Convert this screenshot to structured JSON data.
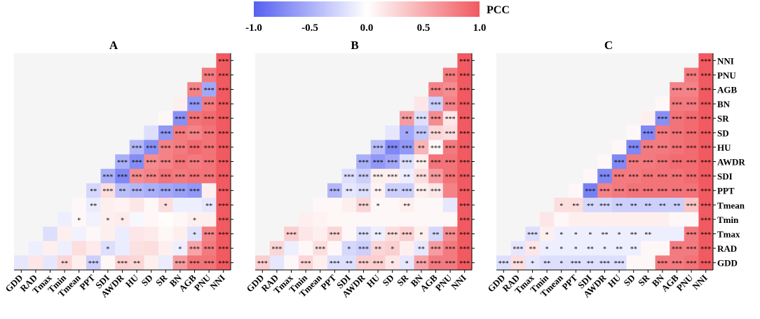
{
  "colorbar": {
    "title": "PCC",
    "tick_labels": [
      "-1.0",
      "-0.5",
      "0.0",
      "0.5",
      "1.0"
    ],
    "tick_values": [
      -1.0,
      -0.5,
      0.0,
      0.5,
      1.0
    ],
    "colors": {
      "negative": "#5560f0",
      "neutral": "#ffffff",
      "positive": "#f05a60"
    }
  },
  "chart_data": [
    {
      "type": "heatmap",
      "title": "A",
      "triangle": "lower-right",
      "x_labels": [
        "GDD",
        "RAD",
        "Tmax",
        "Tmin",
        "Tmean",
        "PPT",
        "SDI",
        "AWDR",
        "HU",
        "SD",
        "SR",
        "BN",
        "AGB",
        "PNU",
        "NNI"
      ],
      "y_labels": [
        "NNI",
        "PNU",
        "AGB",
        "BN",
        "SR",
        "SD",
        "HU",
        "AWDR",
        "SDI",
        "PPT",
        "Tmean",
        "Tmin",
        "Tmax",
        "RAD",
        "GDD"
      ],
      "show_y_labels": false,
      "values": [
        [
          1.0
        ],
        [
          0.8,
          1.0
        ],
        [
          0.75,
          -0.55,
          1.0
        ],
        [
          0.1,
          -0.65,
          0.8,
          1.0
        ],
        [
          0.05,
          -0.7,
          0.85,
          0.9,
          1.0
        ],
        [
          -0.2,
          -0.65,
          0.8,
          0.75,
          0.85,
          1.0
        ],
        [
          -0.45,
          -0.7,
          0.75,
          0.8,
          0.9,
          0.85,
          1.0
        ],
        [
          -0.5,
          -0.72,
          0.7,
          0.75,
          0.85,
          0.8,
          0.85,
          1.0
        ],
        [
          -0.5,
          -0.75,
          0.7,
          0.75,
          0.85,
          0.8,
          0.85,
          0.85,
          1.0
        ],
        [
          -0.25,
          0.2,
          -0.4,
          -0.45,
          -0.5,
          -0.55,
          -0.6,
          -0.65,
          0.1,
          1.0
        ],
        [
          0.05,
          -0.12,
          0.1,
          0.08,
          0.15,
          0.05,
          0.2,
          -0.1,
          -0.1,
          -0.15,
          1.0
        ],
        [
          -0.1,
          0.05,
          -0.08,
          0.1,
          0.12,
          -0.05,
          0.05,
          0.02,
          0.05,
          0.1,
          0.1,
          1.0
        ],
        [
          -0.2,
          0.1,
          -0.08,
          0.05,
          0.1,
          -0.12,
          0.15,
          0.12,
          0.05,
          0.1,
          -0.18,
          0.75,
          1.0
        ],
        [
          -0.1,
          0.1,
          -0.1,
          0.2,
          0.12,
          -0.2,
          -0.12,
          0.18,
          0.2,
          0.1,
          -0.1,
          0.55,
          0.8,
          1.0
        ],
        [
          -0.15,
          0.15,
          -0.15,
          0.25,
          0.1,
          -0.3,
          0.05,
          0.28,
          0.25,
          0.1,
          -0.12,
          0.6,
          0.85,
          0.85,
          1.0
        ]
      ],
      "stars": [
        [
          "***"
        ],
        [
          "***",
          "***"
        ],
        [
          "***",
          "***",
          "***"
        ],
        [
          "",
          "***",
          "***",
          "***"
        ],
        [
          "",
          "***",
          "***",
          "***",
          "***"
        ],
        [
          "",
          "***",
          "***",
          "***",
          "***",
          "***"
        ],
        [
          "***",
          "***",
          "***",
          "***",
          "***",
          "***",
          "***"
        ],
        [
          "***",
          "***",
          "***",
          "***",
          "***",
          "***",
          "***",
          "***"
        ],
        [
          "***",
          "***",
          "***",
          "***",
          "***",
          "***",
          "***",
          "***",
          "***"
        ],
        [
          "**",
          "***",
          "**",
          "***",
          "**",
          "***",
          "***",
          "***",
          "",
          "***"
        ],
        [
          "",
          "**",
          "",
          "",
          "",
          "",
          "*",
          "",
          "",
          "**",
          "***"
        ],
        [
          "",
          "*",
          "",
          "*",
          "*",
          "",
          "",
          "",
          "",
          "*",
          "",
          "***"
        ],
        [
          "",
          "",
          "",
          "",
          "",
          "",
          "",
          "",
          "",
          "",
          "*",
          "***",
          "***"
        ],
        [
          "",
          "",
          "",
          "",
          "",
          "*",
          "",
          "",
          "",
          "",
          "*",
          "***",
          "***",
          "***"
        ],
        [
          "",
          "",
          "",
          "**",
          "",
          "***",
          "",
          "***",
          "**",
          "",
          "",
          "***",
          "***",
          "***",
          "***"
        ]
      ]
    },
    {
      "type": "heatmap",
      "title": "B",
      "triangle": "lower-right",
      "x_labels": [
        "GDD",
        "RAD",
        "Tmax",
        "Tmin",
        "Tmean",
        "PPT",
        "SDI",
        "AWDR",
        "HU",
        "SD",
        "SR",
        "BN",
        "AGB",
        "PNU",
        "NNI"
      ],
      "y_labels": [
        "NNI",
        "PNU",
        "AGB",
        "BN",
        "SR",
        "SD",
        "HU",
        "AWDR",
        "SDI",
        "PPT",
        "Tmean",
        "Tmin",
        "Tmax",
        "RAD",
        "GDD"
      ],
      "show_y_labels": false,
      "values": [
        [
          1.0
        ],
        [
          0.8,
          1.0
        ],
        [
          0.75,
          0.7,
          1.0
        ],
        [
          0.15,
          -0.3,
          0.75,
          1.0
        ],
        [
          0.6,
          -0.2,
          0.7,
          0.15,
          1.0
        ],
        [
          -0.15,
          -0.55,
          -0.35,
          0.25,
          0.2,
          1.0
        ],
        [
          -0.4,
          -0.75,
          -0.65,
          0.45,
          0.05,
          0.8,
          1.0
        ],
        [
          -0.5,
          -0.65,
          -0.55,
          -0.2,
          0.1,
          0.85,
          0.85,
          1.0
        ],
        [
          -0.2,
          -0.3,
          0.1,
          0.1,
          -0.1,
          0.2,
          0.6,
          0.85,
          1.0
        ],
        [
          -0.45,
          -0.15,
          -0.2,
          0.08,
          -0.3,
          -0.3,
          0.1,
          0.15,
          0.75,
          1.0
        ],
        [
          0.05,
          0.05,
          0.1,
          0.25,
          0.05,
          0.05,
          0.1,
          0.05,
          0.05,
          -0.15,
          1.0
        ],
        [
          0.1,
          0.08,
          0.05,
          0.05,
          0.05,
          0.05,
          0.05,
          0.05,
          0.05,
          0.05,
          0.05,
          1.0
        ],
        [
          0.3,
          0.15,
          0.1,
          0.25,
          0.05,
          -0.2,
          -0.1,
          0.2,
          0.3,
          0.1,
          -0.25,
          0.7,
          1.0
        ],
        [
          0.25,
          -0.1,
          0.05,
          0.2,
          0.05,
          -0.25,
          -0.3,
          0.25,
          0.3,
          0.1,
          -0.15,
          0.6,
          0.8,
          1.0
        ],
        [
          0.3,
          -0.15,
          0.05,
          0.25,
          0.1,
          -0.2,
          -0.2,
          0.3,
          0.3,
          0.15,
          -0.15,
          0.55,
          0.8,
          0.8,
          1.0
        ]
      ],
      "stars": [
        [
          "***"
        ],
        [
          "***",
          "***"
        ],
        [
          "***",
          "***",
          "***"
        ],
        [
          "",
          "***",
          "***",
          "***"
        ],
        [
          "***",
          "***",
          "***",
          "***",
          "***"
        ],
        [
          "",
          "*",
          "***",
          "***",
          "***",
          "***"
        ],
        [
          "***",
          "***",
          "***",
          "**",
          "***",
          "***",
          "***"
        ],
        [
          "***",
          "***",
          "***",
          "***",
          "***",
          "***",
          "***",
          "***"
        ],
        [
          "***",
          "***",
          "***",
          "***",
          "**",
          "***",
          "***",
          "***",
          "***"
        ],
        [
          "***",
          "**",
          "***",
          "**",
          "***",
          "***",
          "***",
          "***",
          "",
          "***"
        ],
        [
          "",
          "",
          "",
          "***",
          "*",
          "",
          "**",
          "",
          "",
          "",
          "***"
        ],
        [
          "",
          "",
          "",
          "",
          "",
          "",
          "",
          "",
          "",
          "",
          "",
          "***"
        ],
        [
          "***",
          "",
          "",
          "***",
          "",
          "***",
          "**",
          "***",
          "***",
          "*",
          "**",
          "***",
          "***"
        ],
        [
          "***",
          "",
          "",
          "***",
          "",
          "*",
          "***",
          "**",
          "*",
          "",
          "**",
          "***",
          "***",
          "***"
        ],
        [
          "***",
          "",
          "",
          "***",
          "",
          "***",
          "**",
          "***",
          "***",
          "*",
          "*",
          "***",
          "***",
          "***",
          "***"
        ]
      ]
    },
    {
      "type": "heatmap",
      "title": "C",
      "triangle": "lower-right",
      "x_labels": [
        "GDD",
        "RAD",
        "Tmax",
        "Tmin",
        "Tmean",
        "PPT",
        "SDI",
        "AWDR",
        "HU",
        "SD",
        "SR",
        "BN",
        "AGB",
        "PNU",
        "NNI"
      ],
      "y_labels": [
        "NNI",
        "PNU",
        "AGB",
        "BN",
        "SR",
        "SD",
        "HU",
        "AWDR",
        "SDI",
        "PPT",
        "Tmean",
        "Tmin",
        "Tmax",
        "RAD",
        "GDD"
      ],
      "show_y_labels": true,
      "values": [
        [
          1.0
        ],
        [
          0.8,
          1.0
        ],
        [
          0.75,
          0.75,
          1.0
        ],
        [
          0.05,
          0.8,
          0.8,
          1.0
        ],
        [
          0.1,
          -0.7,
          0.85,
          0.9,
          1.0
        ],
        [
          0.05,
          -0.75,
          0.8,
          0.85,
          0.9,
          1.0
        ],
        [
          0.05,
          -0.75,
          0.8,
          0.8,
          0.85,
          0.9,
          1.0
        ],
        [
          0.05,
          -0.75,
          0.8,
          0.8,
          0.85,
          0.9,
          0.9,
          1.0
        ],
        [
          0.05,
          -0.75,
          0.8,
          0.8,
          0.85,
          0.85,
          0.85,
          0.9,
          1.0
        ],
        [
          0.05,
          -0.8,
          0.75,
          0.8,
          0.85,
          0.85,
          0.85,
          0.85,
          0.85,
          1.0
        ],
        [
          0.2,
          0.2,
          -0.25,
          -0.25,
          -0.3,
          -0.3,
          -0.3,
          -0.3,
          -0.3,
          0.35,
          1.0
        ],
        [
          0.15,
          0.05,
          0.1,
          0.1,
          0.1,
          0.1,
          0.1,
          0.1,
          0.1,
          0.05,
          0.05,
          1.0
        ],
        [
          -0.2,
          0.1,
          -0.1,
          -0.1,
          -0.1,
          -0.1,
          -0.1,
          -0.1,
          -0.1,
          -0.1,
          -0.1,
          0.8,
          1.0
        ],
        [
          -0.15,
          0.15,
          -0.1,
          -0.1,
          -0.1,
          -0.1,
          -0.1,
          -0.1,
          -0.1,
          0.05,
          0.05,
          0.8,
          0.8,
          1.0
        ],
        [
          -0.2,
          0.2,
          -0.15,
          -0.2,
          -0.2,
          -0.2,
          -0.2,
          -0.2,
          -0.2,
          0.05,
          0.05,
          0.8,
          0.8,
          0.85,
          1.0
        ]
      ],
      "stars": [
        [
          "***"
        ],
        [
          "***",
          "***"
        ],
        [
          "***",
          "***",
          "***"
        ],
        [
          "",
          "***",
          "***",
          "***"
        ],
        [
          "",
          "***",
          "***",
          "***",
          "***"
        ],
        [
          "",
          "***",
          "***",
          "***",
          "***",
          "***"
        ],
        [
          "",
          "***",
          "***",
          "***",
          "***",
          "***",
          "***"
        ],
        [
          "",
          "***",
          "***",
          "***",
          "***",
          "***",
          "***",
          "***"
        ],
        [
          "",
          "***",
          "***",
          "***",
          "***",
          "***",
          "***",
          "***",
          "***"
        ],
        [
          "",
          "***",
          "***",
          "***",
          "***",
          "***",
          "***",
          "***",
          "***",
          "***"
        ],
        [
          "*",
          "**",
          "**",
          "***",
          "**",
          "**",
          "**",
          "**",
          "**",
          "***",
          "***"
        ],
        [
          "",
          "",
          "",
          "",
          "",
          "",
          "",
          "",
          "",
          "",
          "",
          "***"
        ],
        [
          "***",
          "*",
          "*",
          "*",
          "*",
          "**",
          "*",
          "**",
          "**",
          "",
          "",
          "***",
          "***"
        ],
        [
          "***",
          "**",
          "*",
          "*",
          "*",
          "**",
          "*",
          "**",
          "**",
          "",
          "",
          "***",
          "***",
          "***"
        ],
        [
          "***",
          "***",
          "*",
          "**",
          "*",
          "***",
          "**",
          "***",
          "***",
          "",
          "",
          "***",
          "***",
          "***",
          "***"
        ]
      ]
    }
  ]
}
